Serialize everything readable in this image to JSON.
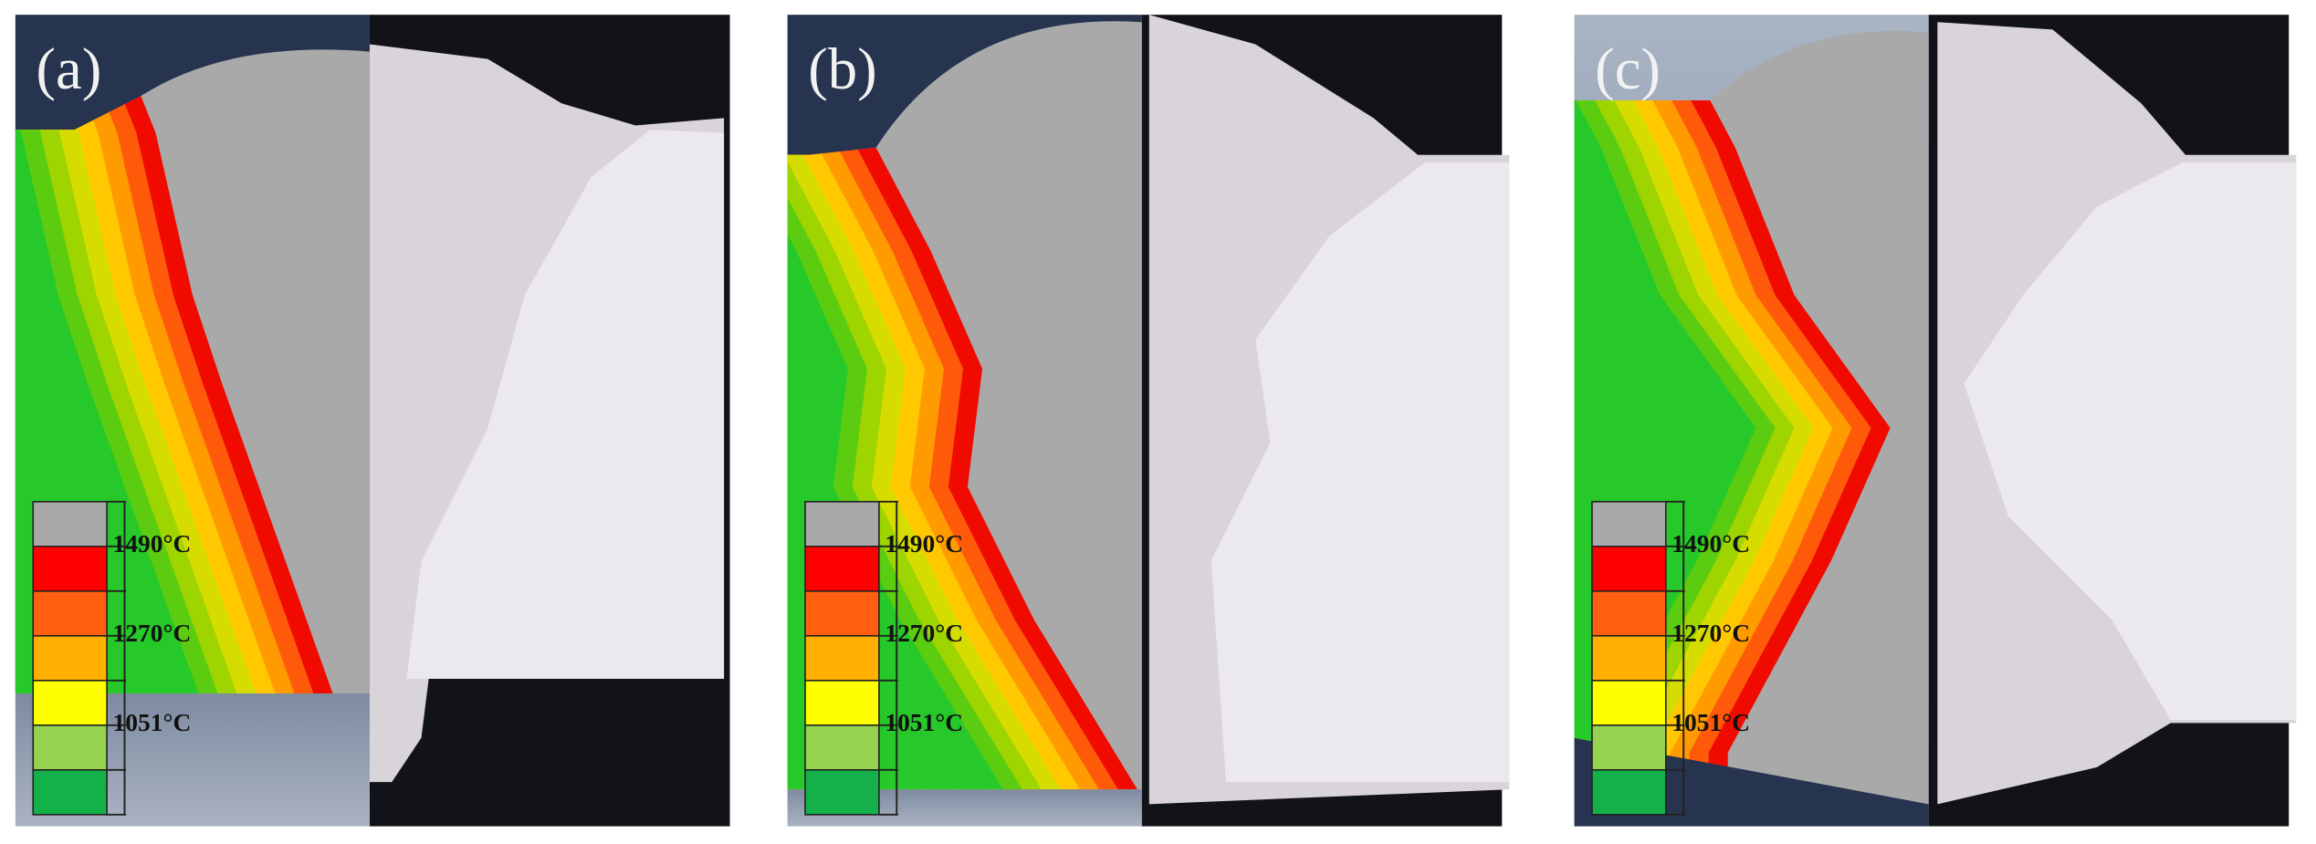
{
  "panels": [
    {
      "label": "(a)",
      "legend": [
        "1490°C",
        "1270°C",
        "1051°C"
      ]
    },
    {
      "label": "(b)",
      "legend": [
        "1490°C",
        "1270°C",
        "1051°C"
      ]
    },
    {
      "label": "(c)",
      "legend": [
        "1490°C",
        "1270°C",
        "1051°C"
      ]
    }
  ]
}
